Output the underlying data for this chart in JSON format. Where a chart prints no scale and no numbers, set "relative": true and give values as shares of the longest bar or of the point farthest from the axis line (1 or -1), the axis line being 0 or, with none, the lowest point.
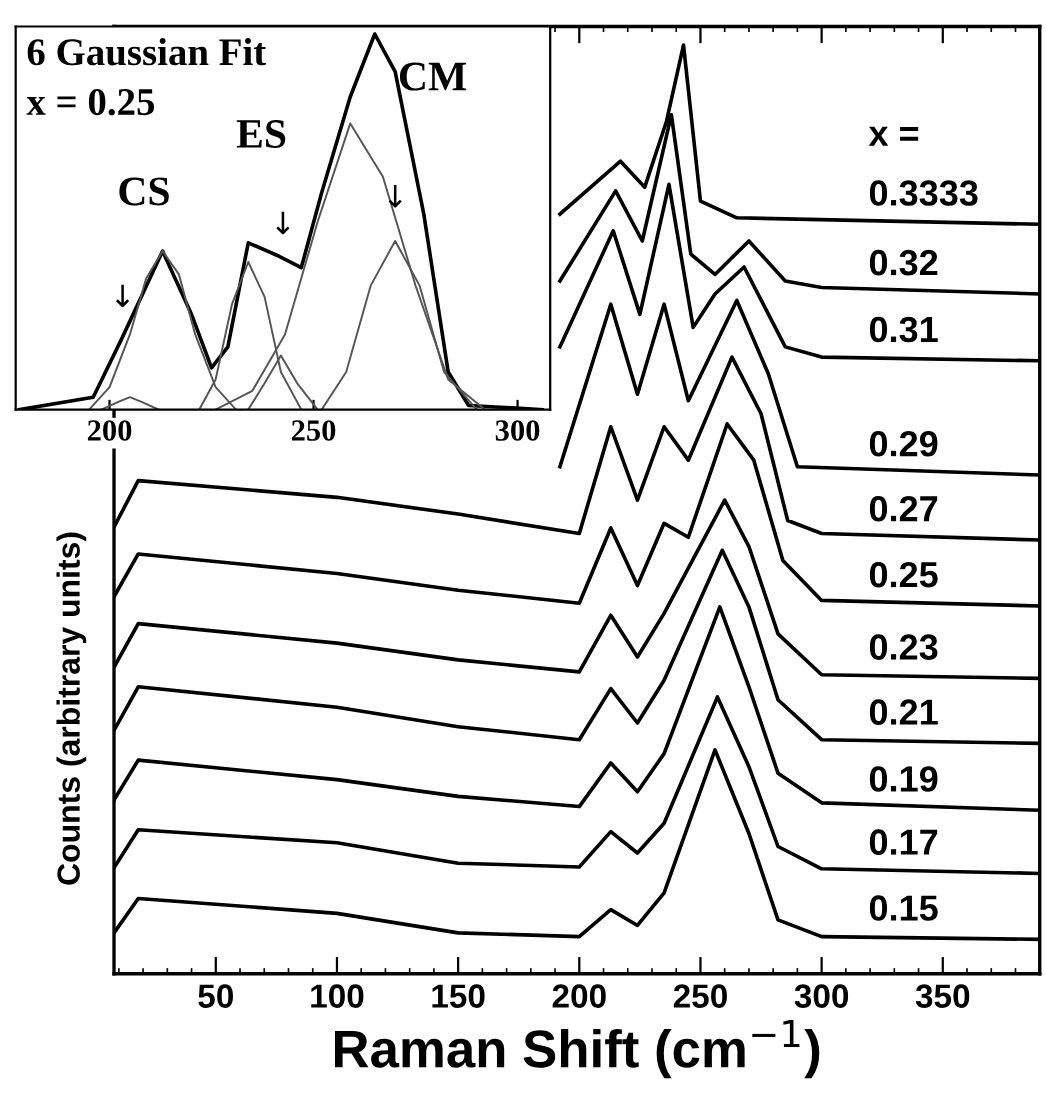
{
  "chart_data": [
    {
      "type": "line",
      "relative": true,
      "xlabel": "Raman Shift (cm$^{−1}$)",
      "ylabel": "Counts (arbitrary units)",
      "xlim": [
        8,
        390
      ],
      "xticks": [
        50,
        100,
        150,
        200,
        250,
        300,
        350
      ],
      "legend": false,
      "grid": false,
      "annotations": [
        "x ="
      ],
      "series": [
        {
          "name": "0.3333",
          "color": "#000000",
          "x": [
            192,
            217,
            227,
            236,
            243,
            250,
            265,
            390
          ],
          "values": [
            0.818,
            0.875,
            0.847,
            0.918,
            1.0,
            0.832,
            0.814,
            0.807
          ]
        },
        {
          "name": "0.32",
          "color": "#000000",
          "x": [
            192,
            215,
            226,
            238,
            246,
            256,
            270,
            285,
            300,
            390
          ],
          "values": [
            0.746,
            0.843,
            0.789,
            0.925,
            0.775,
            0.753,
            0.789,
            0.746,
            0.739,
            0.732
          ]
        },
        {
          "name": "0.31",
          "color": "#000000",
          "x": [
            192,
            214,
            225,
            237,
            247,
            256,
            268,
            285,
            300,
            390
          ],
          "values": [
            0.675,
            0.8,
            0.71,
            0.85,
            0.696,
            0.732,
            0.761,
            0.675,
            0.664,
            0.66
          ]
        },
        {
          "name": "0.29",
          "color": "#000000",
          "x": [
            192,
            213,
            224,
            235,
            245,
            265,
            278,
            290,
            390
          ],
          "values": [
            0.546,
            0.721,
            0.624,
            0.721,
            0.617,
            0.725,
            0.646,
            0.546,
            0.537
          ]
        },
        {
          "name": "0.27",
          "color": "#000000",
          "x": [
            8,
            18,
            100,
            150,
            200,
            213,
            224,
            235,
            245,
            263,
            275,
            286,
            300,
            390
          ],
          "values": [
            0.481,
            0.531,
            0.513,
            0.495,
            0.474,
            0.589,
            0.51,
            0.589,
            0.553,
            0.664,
            0.603,
            0.488,
            0.474,
            0.467
          ]
        },
        {
          "name": "0.25",
          "color": "#000000",
          "x": [
            8,
            18,
            100,
            150,
            200,
            213,
            224,
            235,
            245,
            261,
            272,
            284,
            300,
            390
          ],
          "values": [
            0.406,
            0.452,
            0.431,
            0.413,
            0.399,
            0.48,
            0.418,
            0.485,
            0.47,
            0.592,
            0.553,
            0.445,
            0.402,
            0.396
          ]
        },
        {
          "name": "0.23",
          "color": "#000000",
          "x": [
            8,
            18,
            100,
            150,
            200,
            213,
            224,
            235,
            260,
            270,
            282,
            300,
            390
          ],
          "values": [
            0.33,
            0.377,
            0.356,
            0.338,
            0.325,
            0.386,
            0.341,
            0.388,
            0.51,
            0.46,
            0.366,
            0.322,
            0.318
          ]
        },
        {
          "name": "0.21",
          "color": "#000000",
          "x": [
            8,
            18,
            100,
            150,
            200,
            213,
            224,
            235,
            259,
            270,
            282,
            300,
            390
          ],
          "values": [
            0.262,
            0.309,
            0.287,
            0.266,
            0.252,
            0.307,
            0.27,
            0.316,
            0.456,
            0.395,
            0.295,
            0.252,
            0.248
          ]
        },
        {
          "name": "0.19",
          "color": "#000000",
          "x": [
            8,
            18,
            100,
            150,
            200,
            213,
            224,
            235,
            258,
            270,
            282,
            300,
            390
          ],
          "values": [
            0.187,
            0.23,
            0.209,
            0.191,
            0.18,
            0.227,
            0.196,
            0.237,
            0.395,
            0.309,
            0.216,
            0.184,
            0.176
          ]
        },
        {
          "name": "0.17",
          "color": "#000000",
          "x": [
            8,
            18,
            100,
            150,
            200,
            213,
            224,
            235,
            257,
            270,
            282,
            300,
            390
          ],
          "values": [
            0.114,
            0.155,
            0.141,
            0.119,
            0.115,
            0.153,
            0.13,
            0.162,
            0.298,
            0.223,
            0.137,
            0.113,
            0.108
          ]
        },
        {
          "name": "0.15",
          "color": "#000000",
          "x": [
            8,
            18,
            100,
            150,
            200,
            213,
            224,
            235,
            256,
            270,
            282,
            300,
            390
          ],
          "values": [
            0.044,
            0.081,
            0.065,
            0.044,
            0.04,
            0.069,
            0.052,
            0.087,
            0.241,
            0.151,
            0.058,
            0.04,
            0.037
          ]
        }
      ]
    },
    {
      "type": "line",
      "relative": true,
      "title": "6 Gaussian Fit",
      "subtitle": "x = 0.25",
      "xlim": [
        177,
        308
      ],
      "xticks": [
        200,
        250,
        300
      ],
      "legend": false,
      "grid": false,
      "annotations": [
        "CS",
        "ES",
        "CM",
        "↓",
        "↓",
        "↓"
      ],
      "series": [
        {
          "color": "#000000",
          "x": [
            178,
            196,
            203,
            213,
            220,
            225,
            229,
            234,
            241,
            247,
            252,
            259,
            265,
            270,
            277,
            283,
            288,
            306
          ],
          "values": [
            0,
            0.033,
            0.189,
            0.422,
            0.256,
            0.111,
            0.167,
            0.444,
            0.411,
            0.378,
            0.578,
            0.833,
            1.0,
            0.9,
            0.522,
            0.1,
            0.011,
            0
          ]
        },
        {
          "color": "#555555",
          "x": [
            198,
            202,
            205,
            208,
            212
          ],
          "values": [
            0,
            0.02,
            0.033,
            0.02,
            0
          ]
        },
        {
          "color": "#555555",
          "x": [
            195,
            200,
            205,
            209,
            213,
            217,
            221,
            226,
            231
          ],
          "values": [
            0,
            0.06,
            0.2,
            0.35,
            0.422,
            0.36,
            0.2,
            0.06,
            0
          ]
        },
        {
          "color": "#555555",
          "x": [
            222,
            226,
            230,
            234,
            238,
            242,
            247
          ],
          "values": [
            0,
            0.08,
            0.28,
            0.393,
            0.3,
            0.1,
            0
          ]
        },
        {
          "color": "#555555",
          "x": [
            234,
            238,
            242,
            246,
            251
          ],
          "values": [
            0,
            0.07,
            0.144,
            0.07,
            0
          ]
        },
        {
          "color": "#555555",
          "x": [
            226,
            235,
            243,
            251,
            259,
            267,
            275,
            283,
            292
          ],
          "values": [
            0,
            0.05,
            0.2,
            0.5,
            0.762,
            0.62,
            0.33,
            0.08,
            0
          ]
        },
        {
          "color": "#555555",
          "x": [
            252,
            258,
            264,
            270,
            276,
            282,
            290
          ],
          "values": [
            0,
            0.1,
            0.33,
            0.449,
            0.33,
            0.1,
            0
          ]
        }
      ]
    }
  ]
}
